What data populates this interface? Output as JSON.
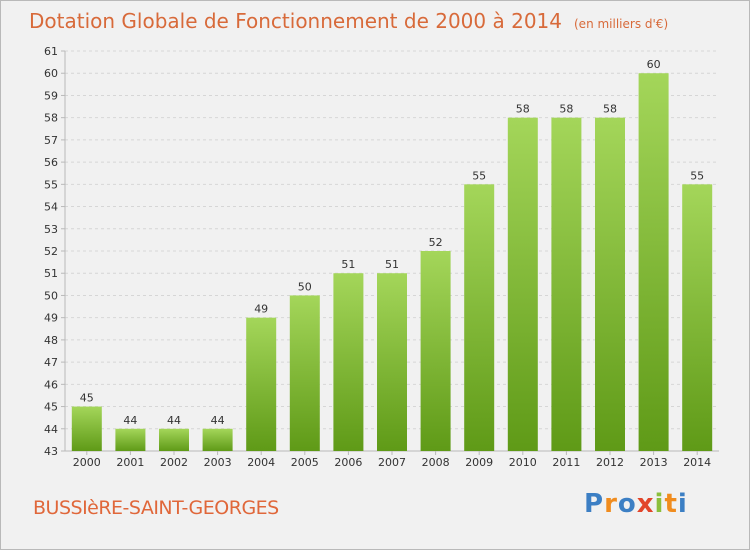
{
  "title": "Dotation Globale de Fonctionnement de 2000 à 2014",
  "subtitle": "(en milliers d'€)",
  "commune": "BUSSIèRE-SAINT-GEORGES",
  "logo": {
    "text": "Proxiti",
    "letters": [
      {
        "ch": "P",
        "color": "#3c7fc4"
      },
      {
        "ch": "r",
        "color": "#f08c1e"
      },
      {
        "ch": "o",
        "color": "#3c7fc4"
      },
      {
        "ch": "x",
        "color": "#e2452a"
      },
      {
        "ch": "i",
        "color": "#8bbf3c"
      },
      {
        "ch": "t",
        "color": "#f08c1e"
      },
      {
        "ch": "i",
        "color": "#3c7fc4"
      }
    ]
  },
  "colors": {
    "title": "#d86a3a",
    "bar_top": "#a4d65a",
    "bar_bottom": "#5f9a17",
    "grid": "#d6d6d6",
    "axis": "#b9b9b9",
    "text": "#333333"
  },
  "chart_data": {
    "type": "bar",
    "categories": [
      "2000",
      "2001",
      "2002",
      "2003",
      "2004",
      "2005",
      "2006",
      "2007",
      "2008",
      "2009",
      "2010",
      "2011",
      "2012",
      "2013",
      "2014"
    ],
    "values": [
      45,
      44,
      44,
      44,
      49,
      50,
      51,
      51,
      52,
      55,
      58,
      58,
      58,
      60,
      55
    ],
    "ylim": [
      43,
      61
    ],
    "yticks": [
      43,
      44,
      45,
      46,
      47,
      48,
      49,
      50,
      51,
      52,
      53,
      54,
      55,
      56,
      57,
      58,
      59,
      60,
      61
    ],
    "grid": true,
    "data_labels": true
  }
}
